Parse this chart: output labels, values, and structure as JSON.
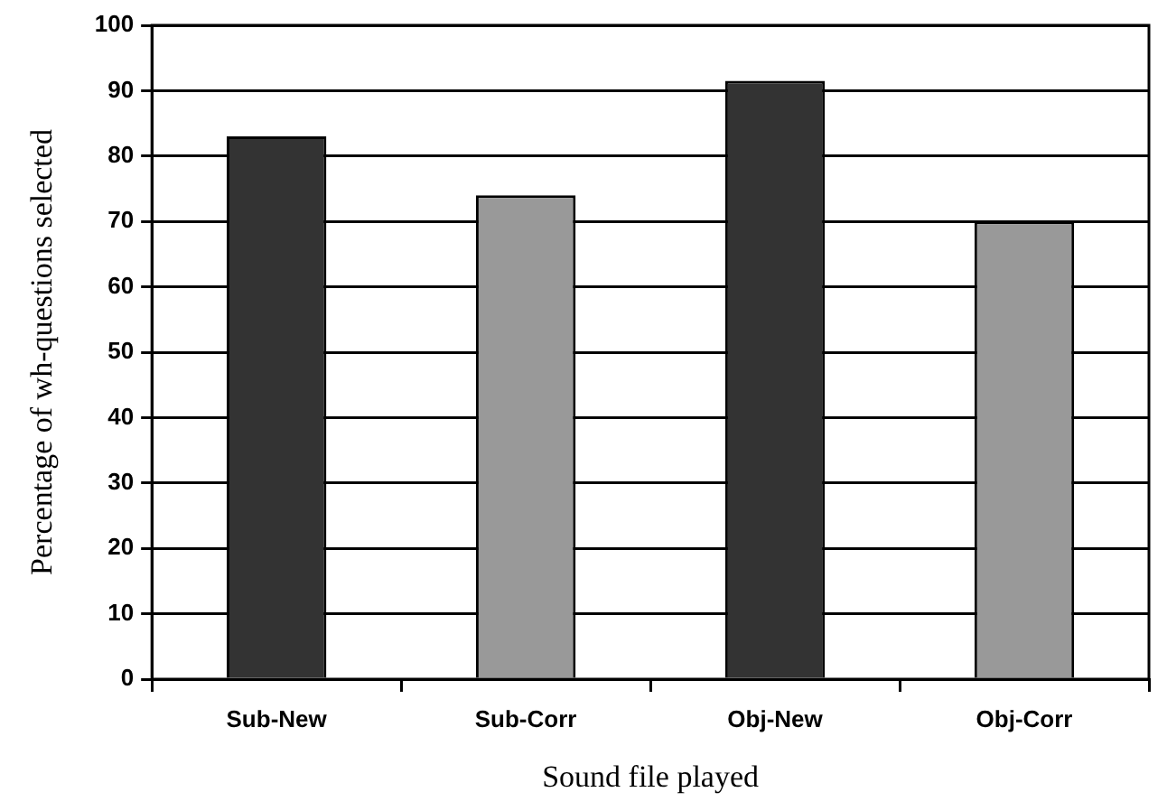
{
  "chart_data": {
    "type": "bar",
    "xlabel": "Sound file played",
    "ylabel": "Percentage of wh-questions selected",
    "categories": [
      "Sub-New",
      "Sub-Corr",
      "Obj-New",
      "Obj-Corr"
    ],
    "values": [
      83,
      74,
      91.5,
      70
    ],
    "colors": [
      "#333333",
      "#999999",
      "#333333",
      "#999999"
    ],
    "ylim": [
      0,
      100
    ],
    "yticks": [
      0,
      10,
      20,
      30,
      40,
      50,
      60,
      70,
      80,
      90,
      100
    ],
    "grid": "y"
  }
}
